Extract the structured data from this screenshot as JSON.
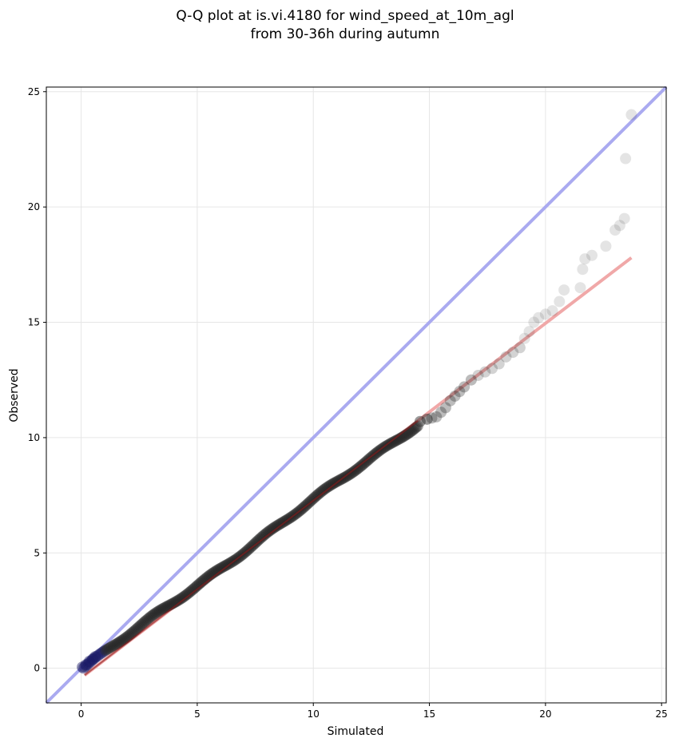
{
  "figure": {
    "title_line1": "Q-Q plot at is.vi.4180 for wind_speed_at_10m_agl",
    "title_line2": "from 30-36h during autumn"
  },
  "chart_data": {
    "type": "scatter",
    "title": "Q-Q plot at is.vi.4180 for wind_speed_at_10m_agl\nfrom 30-36h during autumn",
    "xlabel": "Simulated",
    "ylabel": "Observed",
    "xlim": [
      -1.5,
      25.2
    ],
    "ylim": [
      -1.5,
      25.2
    ],
    "x_ticks": [
      0,
      5,
      10,
      15,
      20,
      25
    ],
    "y_ticks": [
      0,
      5,
      10,
      15,
      20,
      25
    ],
    "x_tick_labels": [
      "0",
      "5",
      "10",
      "15",
      "20",
      "25"
    ],
    "y_tick_labels": [
      "0",
      "5",
      "10",
      "15",
      "20",
      "25"
    ],
    "grid": true,
    "colors": {
      "points": "#222222",
      "points_low": "#1a1a66",
      "identity_line": "#aaaaf0",
      "fit_line": "#f0a8a8",
      "fit_line_inner": "#8b1a1a",
      "grid": "#e6e6e6"
    },
    "identity_line": {
      "from": [
        -1.5,
        -1.5
      ],
      "to": [
        25.2,
        25.2
      ]
    },
    "fit_line": {
      "from": [
        0.15,
        -0.3
      ],
      "to": [
        23.7,
        17.8
      ]
    },
    "dense_segments": [
      {
        "x": [
          0.1,
          14.5
        ],
        "y": [
          0.0,
          10.6
        ],
        "count": 260
      }
    ],
    "points": [
      [
        0.05,
        0.05
      ],
      [
        0.2,
        0.15
      ],
      [
        0.35,
        0.3
      ],
      [
        0.5,
        0.4
      ],
      [
        0.6,
        0.5
      ],
      [
        14.6,
        10.7
      ],
      [
        14.9,
        10.8
      ],
      [
        15.1,
        10.85
      ],
      [
        15.3,
        10.9
      ],
      [
        15.5,
        11.1
      ],
      [
        15.7,
        11.3
      ],
      [
        15.9,
        11.6
      ],
      [
        16.1,
        11.8
      ],
      [
        16.3,
        12.0
      ],
      [
        16.5,
        12.2
      ],
      [
        16.8,
        12.5
      ],
      [
        17.1,
        12.7
      ],
      [
        17.4,
        12.85
      ],
      [
        17.7,
        13.0
      ],
      [
        18.0,
        13.2
      ],
      [
        18.3,
        13.5
      ],
      [
        18.6,
        13.7
      ],
      [
        18.9,
        13.9
      ],
      [
        19.1,
        14.3
      ],
      [
        19.3,
        14.6
      ],
      [
        19.5,
        15.0
      ],
      [
        19.7,
        15.2
      ],
      [
        20.0,
        15.35
      ],
      [
        20.3,
        15.5
      ],
      [
        20.6,
        15.9
      ],
      [
        20.8,
        16.4
      ],
      [
        21.5,
        16.5
      ],
      [
        21.6,
        17.3
      ],
      [
        21.7,
        17.75
      ],
      [
        22.0,
        17.9
      ],
      [
        22.6,
        18.3
      ],
      [
        23.0,
        19.0
      ],
      [
        23.2,
        19.2
      ],
      [
        23.4,
        19.5
      ],
      [
        23.45,
        22.1
      ],
      [
        23.7,
        24.0
      ]
    ]
  }
}
